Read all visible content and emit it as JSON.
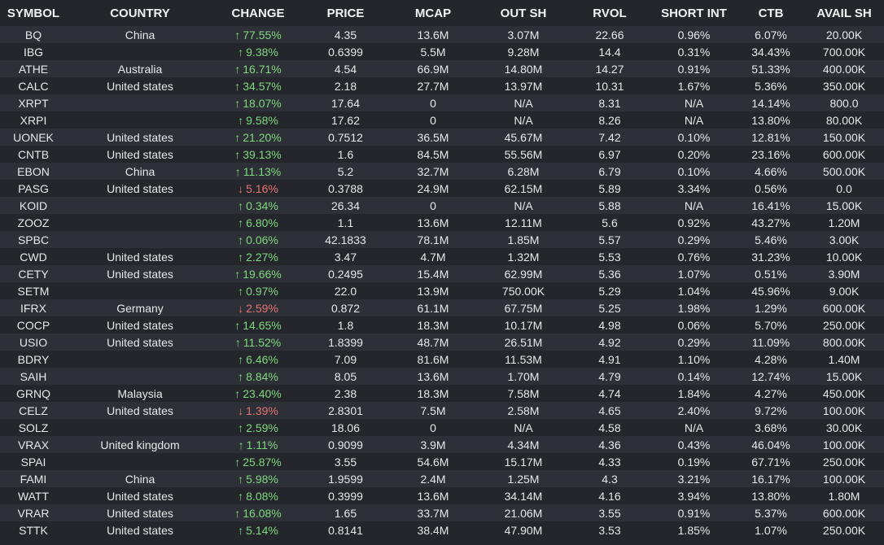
{
  "columns": [
    {
      "key": "symbol",
      "label": "SYMBOL"
    },
    {
      "key": "country",
      "label": "COUNTRY"
    },
    {
      "key": "change",
      "label": "CHANGE"
    },
    {
      "key": "price",
      "label": "PRICE"
    },
    {
      "key": "mcap",
      "label": "MCAP"
    },
    {
      "key": "out_sh",
      "label": "OUT SH"
    },
    {
      "key": "rvol",
      "label": "RVOL"
    },
    {
      "key": "short_int",
      "label": "SHORT INT"
    },
    {
      "key": "ctb",
      "label": "CTB"
    },
    {
      "key": "avail_sh",
      "label": "AVAIL SH"
    }
  ],
  "colors": {
    "up": "#7fd87f",
    "down": "#e57373"
  },
  "rows": [
    {
      "symbol": "BQ",
      "country": "China",
      "dir": "up",
      "arrow": "↑",
      "change": "77.55%",
      "price": "4.35",
      "mcap": "13.6M",
      "out_sh": "3.07M",
      "rvol": "22.66",
      "short_int": "0.96%",
      "ctb": "6.07%",
      "avail_sh": "20.00K"
    },
    {
      "symbol": "IBG",
      "country": "",
      "dir": "up",
      "arrow": "↑",
      "change": "9.38%",
      "price": "0.6399",
      "mcap": "5.5M",
      "out_sh": "9.28M",
      "rvol": "14.4",
      "short_int": "0.31%",
      "ctb": "34.43%",
      "avail_sh": "700.00K"
    },
    {
      "symbol": "ATHE",
      "country": "Australia",
      "dir": "up",
      "arrow": "↑",
      "change": "16.71%",
      "price": "4.54",
      "mcap": "66.9M",
      "out_sh": "14.80M",
      "rvol": "14.27",
      "short_int": "0.91%",
      "ctb": "51.33%",
      "avail_sh": "400.00K"
    },
    {
      "symbol": "CALC",
      "country": "United states",
      "dir": "up",
      "arrow": "↑",
      "change": "34.57%",
      "price": "2.18",
      "mcap": "27.7M",
      "out_sh": "13.97M",
      "rvol": "10.31",
      "short_int": "1.67%",
      "ctb": "5.36%",
      "avail_sh": "350.00K"
    },
    {
      "symbol": "XRPT",
      "country": "",
      "dir": "up",
      "arrow": "↑",
      "change": "18.07%",
      "price": "17.64",
      "mcap": "0",
      "out_sh": "N/A",
      "rvol": "8.31",
      "short_int": "N/A",
      "ctb": "14.14%",
      "avail_sh": "800.0"
    },
    {
      "symbol": "XRPI",
      "country": "",
      "dir": "up",
      "arrow": "↑",
      "change": "9.58%",
      "price": "17.62",
      "mcap": "0",
      "out_sh": "N/A",
      "rvol": "8.26",
      "short_int": "N/A",
      "ctb": "13.80%",
      "avail_sh": "80.00K"
    },
    {
      "symbol": "UONEK",
      "country": "United states",
      "dir": "up",
      "arrow": "↑",
      "change": "21.20%",
      "price": "0.7512",
      "mcap": "36.5M",
      "out_sh": "45.67M",
      "rvol": "7.42",
      "short_int": "0.10%",
      "ctb": "12.81%",
      "avail_sh": "150.00K"
    },
    {
      "symbol": "CNTB",
      "country": "United states",
      "dir": "up",
      "arrow": "↑",
      "change": "39.13%",
      "price": "1.6",
      "mcap": "84.5M",
      "out_sh": "55.56M",
      "rvol": "6.97",
      "short_int": "0.20%",
      "ctb": "23.16%",
      "avail_sh": "600.00K"
    },
    {
      "symbol": "EBON",
      "country": "China",
      "dir": "up",
      "arrow": "↑",
      "change": "11.13%",
      "price": "5.2",
      "mcap": "32.7M",
      "out_sh": "6.28M",
      "rvol": "6.79",
      "short_int": "0.10%",
      "ctb": "4.66%",
      "avail_sh": "500.00K"
    },
    {
      "symbol": "PASG",
      "country": "United states",
      "dir": "down",
      "arrow": "↓",
      "change": "5.16%",
      "price": "0.3788",
      "mcap": "24.9M",
      "out_sh": "62.15M",
      "rvol": "5.89",
      "short_int": "3.34%",
      "ctb": "0.56%",
      "avail_sh": "0.0"
    },
    {
      "symbol": "KOID",
      "country": "",
      "dir": "up",
      "arrow": "↑",
      "change": "0.34%",
      "price": "26.34",
      "mcap": "0",
      "out_sh": "N/A",
      "rvol": "5.88",
      "short_int": "N/A",
      "ctb": "16.41%",
      "avail_sh": "15.00K"
    },
    {
      "symbol": "ZOOZ",
      "country": "",
      "dir": "up",
      "arrow": "↑",
      "change": "6.80%",
      "price": "1.1",
      "mcap": "13.6M",
      "out_sh": "12.11M",
      "rvol": "5.6",
      "short_int": "0.92%",
      "ctb": "43.27%",
      "avail_sh": "1.20M"
    },
    {
      "symbol": "SPBC",
      "country": "",
      "dir": "up",
      "arrow": "↑",
      "change": "0.06%",
      "price": "42.1833",
      "mcap": "78.1M",
      "out_sh": "1.85M",
      "rvol": "5.57",
      "short_int": "0.29%",
      "ctb": "5.46%",
      "avail_sh": "3.00K"
    },
    {
      "symbol": "CWD",
      "country": "United states",
      "dir": "up",
      "arrow": "↑",
      "change": "2.27%",
      "price": "3.47",
      "mcap": "4.7M",
      "out_sh": "1.32M",
      "rvol": "5.53",
      "short_int": "0.76%",
      "ctb": "31.23%",
      "avail_sh": "10.00K"
    },
    {
      "symbol": "CETY",
      "country": "United states",
      "dir": "up",
      "arrow": "↑",
      "change": "19.66%",
      "price": "0.2495",
      "mcap": "15.4M",
      "out_sh": "62.99M",
      "rvol": "5.36",
      "short_int": "1.07%",
      "ctb": "0.51%",
      "avail_sh": "3.90M"
    },
    {
      "symbol": "SETM",
      "country": "",
      "dir": "up",
      "arrow": "↑",
      "change": "0.97%",
      "price": "22.0",
      "mcap": "13.9M",
      "out_sh": "750.00K",
      "rvol": "5.29",
      "short_int": "1.04%",
      "ctb": "45.96%",
      "avail_sh": "9.00K"
    },
    {
      "symbol": "IFRX",
      "country": "Germany",
      "dir": "down",
      "arrow": "↓",
      "change": "2.59%",
      "price": "0.872",
      "mcap": "61.1M",
      "out_sh": "67.75M",
      "rvol": "5.25",
      "short_int": "1.98%",
      "ctb": "1.29%",
      "avail_sh": "600.00K"
    },
    {
      "symbol": "COCP",
      "country": "United states",
      "dir": "up",
      "arrow": "↑",
      "change": "14.65%",
      "price": "1.8",
      "mcap": "18.3M",
      "out_sh": "10.17M",
      "rvol": "4.98",
      "short_int": "0.06%",
      "ctb": "5.70%",
      "avail_sh": "250.00K"
    },
    {
      "symbol": "USIO",
      "country": "United states",
      "dir": "up",
      "arrow": "↑",
      "change": "11.52%",
      "price": "1.8399",
      "mcap": "48.7M",
      "out_sh": "26.51M",
      "rvol": "4.92",
      "short_int": "0.29%",
      "ctb": "11.09%",
      "avail_sh": "800.00K"
    },
    {
      "symbol": "BDRY",
      "country": "",
      "dir": "up",
      "arrow": "↑",
      "change": "6.46%",
      "price": "7.09",
      "mcap": "81.6M",
      "out_sh": "11.53M",
      "rvol": "4.91",
      "short_int": "1.10%",
      "ctb": "4.28%",
      "avail_sh": "1.40M"
    },
    {
      "symbol": "SAIH",
      "country": "",
      "dir": "up",
      "arrow": "↑",
      "change": "8.84%",
      "price": "8.05",
      "mcap": "13.6M",
      "out_sh": "1.70M",
      "rvol": "4.79",
      "short_int": "0.14%",
      "ctb": "12.74%",
      "avail_sh": "15.00K"
    },
    {
      "symbol": "GRNQ",
      "country": "Malaysia",
      "dir": "up",
      "arrow": "↑",
      "change": "23.40%",
      "price": "2.38",
      "mcap": "18.3M",
      "out_sh": "7.58M",
      "rvol": "4.74",
      "short_int": "1.84%",
      "ctb": "4.27%",
      "avail_sh": "450.00K"
    },
    {
      "symbol": "CELZ",
      "country": "United states",
      "dir": "down",
      "arrow": "↓",
      "change": "1.39%",
      "price": "2.8301",
      "mcap": "7.5M",
      "out_sh": "2.58M",
      "rvol": "4.65",
      "short_int": "2.40%",
      "ctb": "9.72%",
      "avail_sh": "100.00K"
    },
    {
      "symbol": "SOLZ",
      "country": "",
      "dir": "up",
      "arrow": "↑",
      "change": "2.59%",
      "price": "18.06",
      "mcap": "0",
      "out_sh": "N/A",
      "rvol": "4.58",
      "short_int": "N/A",
      "ctb": "3.68%",
      "avail_sh": "30.00K"
    },
    {
      "symbol": "VRAX",
      "country": "United kingdom",
      "dir": "up",
      "arrow": "↑",
      "change": "1.11%",
      "price": "0.9099",
      "mcap": "3.9M",
      "out_sh": "4.34M",
      "rvol": "4.36",
      "short_int": "0.43%",
      "ctb": "46.04%",
      "avail_sh": "100.00K"
    },
    {
      "symbol": "SPAI",
      "country": "",
      "dir": "up",
      "arrow": "↑",
      "change": "25.87%",
      "price": "3.55",
      "mcap": "54.6M",
      "out_sh": "15.17M",
      "rvol": "4.33",
      "short_int": "0.19%",
      "ctb": "67.71%",
      "avail_sh": "250.00K"
    },
    {
      "symbol": "FAMI",
      "country": "China",
      "dir": "up",
      "arrow": "↑",
      "change": "5.98%",
      "price": "1.9599",
      "mcap": "2.4M",
      "out_sh": "1.25M",
      "rvol": "4.3",
      "short_int": "3.21%",
      "ctb": "16.17%",
      "avail_sh": "100.00K"
    },
    {
      "symbol": "WATT",
      "country": "United states",
      "dir": "up",
      "arrow": "↑",
      "change": "8.08%",
      "price": "0.3999",
      "mcap": "13.6M",
      "out_sh": "34.14M",
      "rvol": "4.16",
      "short_int": "3.94%",
      "ctb": "13.80%",
      "avail_sh": "1.80M"
    },
    {
      "symbol": "VRAR",
      "country": "United states",
      "dir": "up",
      "arrow": "↑",
      "change": "16.08%",
      "price": "1.65",
      "mcap": "33.7M",
      "out_sh": "21.06M",
      "rvol": "3.55",
      "short_int": "0.91%",
      "ctb": "5.37%",
      "avail_sh": "600.00K"
    },
    {
      "symbol": "STTK",
      "country": "United states",
      "dir": "up",
      "arrow": "↑",
      "change": "5.14%",
      "price": "0.8141",
      "mcap": "38.4M",
      "out_sh": "47.90M",
      "rvol": "3.53",
      "short_int": "1.85%",
      "ctb": "1.07%",
      "avail_sh": "250.00K"
    }
  ]
}
